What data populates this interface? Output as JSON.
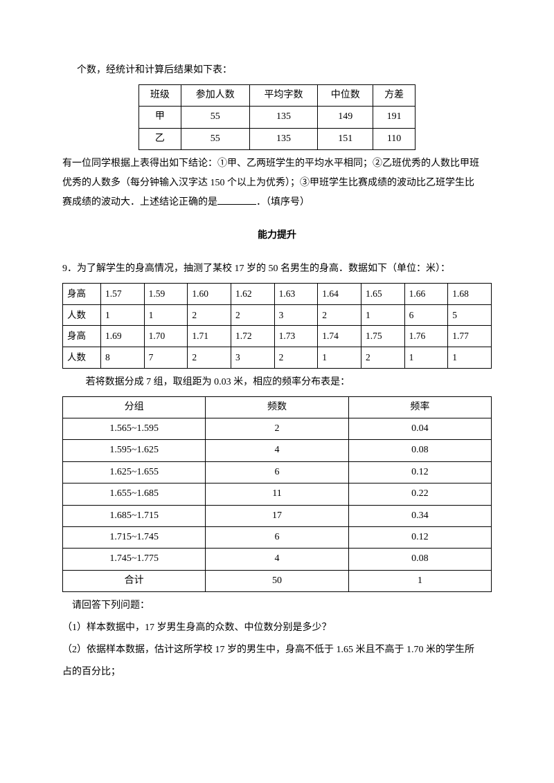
{
  "intro_line": "个数，经统计和计算后结果如下表：",
  "table1": {
    "headers": [
      "班级",
      "参加人数",
      "平均字数",
      "中位数",
      "方差"
    ],
    "rows": [
      [
        "甲",
        "55",
        "135",
        "149",
        "191"
      ],
      [
        "乙",
        "55",
        "135",
        "151",
        "110"
      ]
    ]
  },
  "para2a": "有一位同学根据上表得出如下结论：①甲、乙两班学生的平均水平相同；②乙班优秀的人数比甲班",
  "para2b": "优秀的人数多（每分钟输入汉字达 150 个以上为优秀）；③甲班学生比赛成绩的波动比乙班学生比",
  "para2c_pre": "赛成绩的波动大．上述结论正确的是",
  "para2c_post": "．（填序号）",
  "section": "能力提升",
  "q9_intro": "9．为了解学生的身高情况，抽测了某校 17 岁的 50 名男生的身高．数据如下（单位：米）：",
  "table2": {
    "rows": [
      [
        "身高",
        "1.57",
        "1.59",
        "1.60",
        "1.62",
        "1.63",
        "1.64",
        "1.65",
        "1.66",
        "1.68"
      ],
      [
        "人数",
        "1",
        "1",
        "2",
        "2",
        "3",
        "2",
        "1",
        "6",
        "5"
      ],
      [
        "身高",
        "1.69",
        "1.70",
        "1.71",
        "1.72",
        "1.73",
        "1.74",
        "1.75",
        "1.76",
        "1.77"
      ],
      [
        "人数",
        "8",
        "7",
        "2",
        "3",
        "2",
        "1",
        "2",
        "1",
        "1"
      ]
    ]
  },
  "q9_mid": "若将数据分成 7 组，取组距为 0.03 米，相应的频率分布表是：",
  "table3": {
    "headers": [
      "分组",
      "频数",
      "频率"
    ],
    "rows": [
      [
        "1.565~1.595",
        "2",
        "0.04"
      ],
      [
        "1.595~1.625",
        "4",
        "0.08"
      ],
      [
        "1.625~1.655",
        "6",
        "0.12"
      ],
      [
        "1.655~1.685",
        "11",
        "0.22"
      ],
      [
        "1.685~1.715",
        "17",
        "0.34"
      ],
      [
        "1.715~1.745",
        "6",
        "0.12"
      ],
      [
        "1.745~1.775",
        "4",
        "0.08"
      ],
      [
        "合计",
        "50",
        "1"
      ]
    ]
  },
  "q9_qintro": "请回答下列问题：",
  "q9_sub1": "（1）样本数据中，17 岁男生身高的众数、中位数分别是多少？",
  "q9_sub2a": "（2）依据样本数据，估计这所学校 17 岁的男生中，身高不低于 1.65 米且不高于 1.70 米的学生所",
  "q9_sub2b": "占的百分比；"
}
